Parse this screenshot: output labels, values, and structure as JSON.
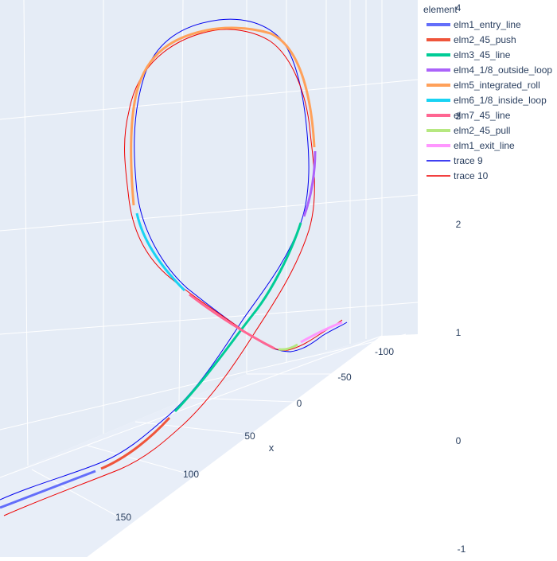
{
  "chart_data": {
    "type": "line3d",
    "title": "",
    "legend_title": "element",
    "legend_position": "top-right",
    "axes": {
      "x": {
        "label": "x",
        "ticks": [
          "-100",
          "-50",
          "0",
          "50",
          "100",
          "150"
        ]
      },
      "z": {
        "label": "z",
        "ticks": [
          "4",
          "3",
          "2",
          "1",
          "0",
          "-1"
        ]
      }
    },
    "series": [
      {
        "name": "elm1_entry_line",
        "color": "#636efa"
      },
      {
        "name": "elm2_45_push",
        "color": "#ef553b"
      },
      {
        "name": "elm3_45_line",
        "color": "#00cc96"
      },
      {
        "name": "elm4_1/8_outside_loop",
        "color": "#ab63fa"
      },
      {
        "name": "elm5_integrated_roll",
        "color": "#ffa15a"
      },
      {
        "name": "elm6_1/8_inside_loop",
        "color": "#19d3f3"
      },
      {
        "name": "elm7_45_line",
        "color": "#ff6692"
      },
      {
        "name": "elm2_45_pull",
        "color": "#b6e880"
      },
      {
        "name": "elm1_exit_line",
        "color": "#ff97ff"
      },
      {
        "name": "trace 9",
        "color": "#0000ee"
      },
      {
        "name": "trace 10",
        "color": "#ee0000"
      }
    ]
  }
}
